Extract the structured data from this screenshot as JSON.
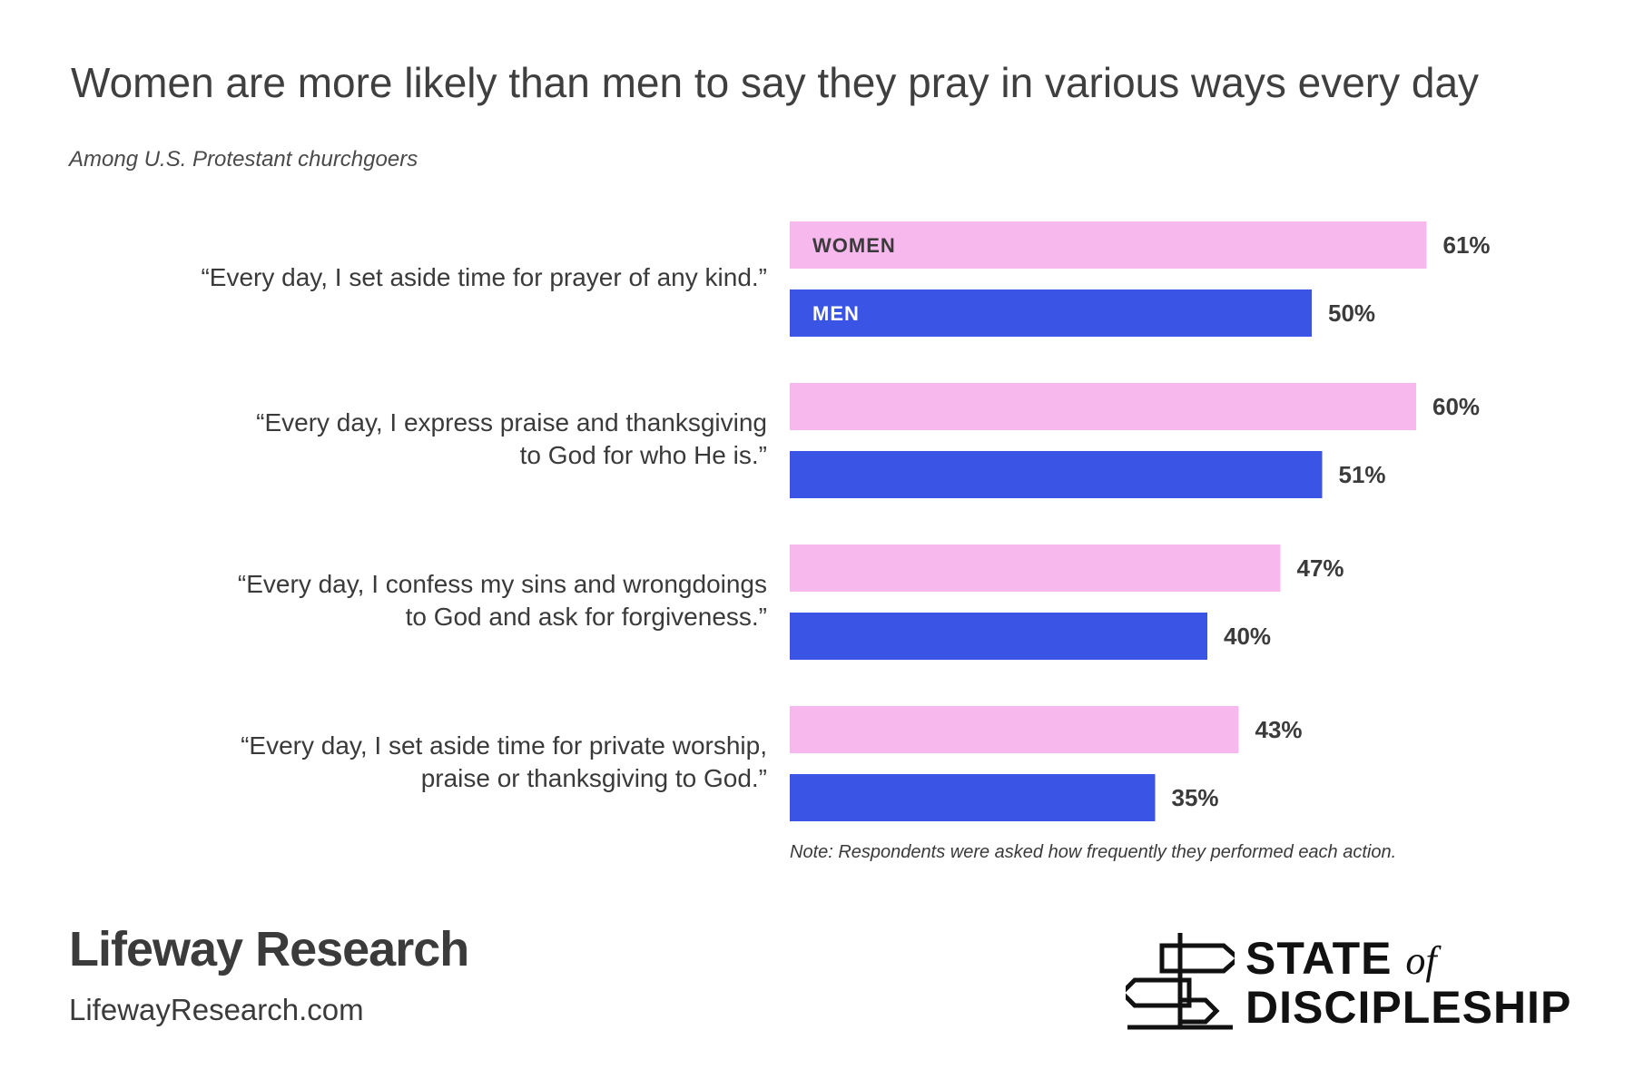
{
  "title": "Women are more likely than men to say they pray in various ways every day",
  "subtitle": "Among U.S. Protestant churchgoers",
  "note": "Note: Respondents were asked how frequently they performed each action.",
  "colors": {
    "women": "#f7b8ed",
    "men": "#3a55e6",
    "women_label": "#3b3b3b",
    "men_label": "#ffffff"
  },
  "chart_data": {
    "type": "bar",
    "orientation": "horizontal",
    "categories": [
      "“Every day, I set aside time for prayer of any kind.”",
      "“Every day, I express praise and thanksgiving to God for who He is.”",
      "“Every day, I confess my sins and wrongdoings to God and ask for forgiveness.”",
      "“Every day, I set aside time for private worship, praise or thanksgiving to God.”"
    ],
    "category_lines": [
      [
        "“Every day, I set aside time for prayer of any kind.”"
      ],
      [
        "“Every day, I express praise and thanksgiving",
        "to God for who He is.”"
      ],
      [
        "“Every day, I confess my sins and wrongdoings",
        "to God and ask for forgiveness.”"
      ],
      [
        "“Every day, I set aside time for private worship,",
        "praise or thanksgiving to God.”"
      ]
    ],
    "series": [
      {
        "name": "WOMEN",
        "values": [
          61,
          60,
          47,
          43
        ],
        "labels": [
          "61%",
          "60%",
          "47%",
          "43%"
        ]
      },
      {
        "name": "MEN",
        "values": [
          50,
          51,
          40,
          35
        ],
        "labels": [
          "50%",
          "51%",
          "40%",
          "35%"
        ]
      }
    ],
    "unit": "%",
    "xlim": [
      0,
      100
    ],
    "grid": false,
    "legend": "inside-first-bars"
  },
  "brand": {
    "name": "Lifeway Research",
    "url": "LifewayResearch.com",
    "logo_line1": "STATE",
    "logo_of": "of",
    "logo_line2": "DISCIPLESHIP",
    "logo_icon": "signpost-icon"
  }
}
